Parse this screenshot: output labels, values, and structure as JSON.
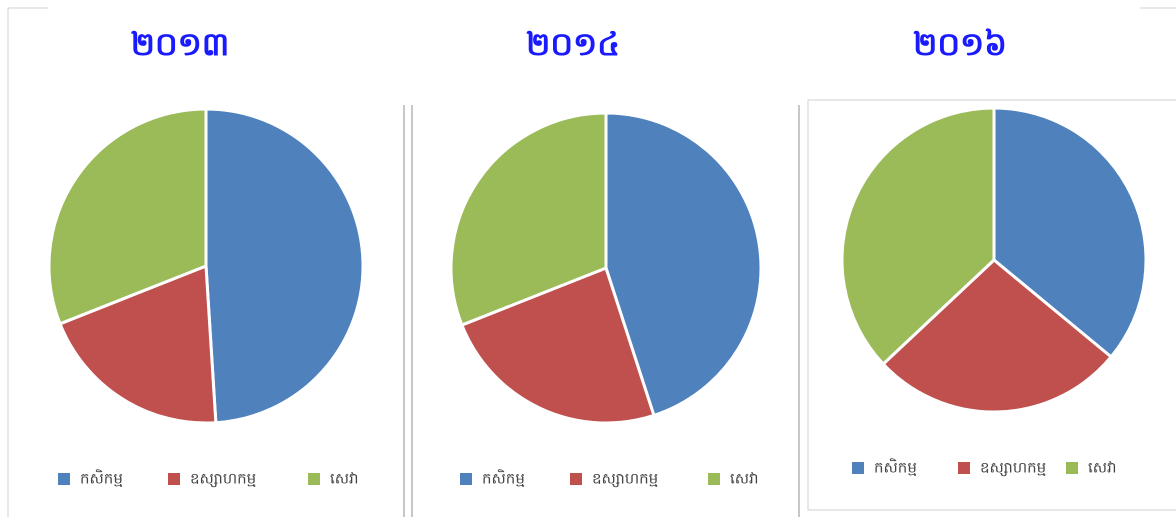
{
  "chart_data": [
    {
      "type": "pie",
      "title": "២០១៣",
      "categories": [
        "កសិកម្ម",
        "ឧស្សាហកម្ម",
        "សេវា"
      ],
      "values": [
        49,
        20,
        31
      ],
      "colors": [
        "#4f81bd",
        "#c0504d",
        "#9bbb59"
      ]
    },
    {
      "type": "pie",
      "title": "២០១៤",
      "categories": [
        "កសិកម្ម",
        "ឧស្សាហកម្ម",
        "សេវា"
      ],
      "values": [
        45,
        24,
        31
      ],
      "colors": [
        "#4f81bd",
        "#c0504d",
        "#9bbb59"
      ]
    },
    {
      "type": "pie",
      "title": "២០១៦",
      "categories": [
        "កសិកម្ម",
        "ឧស្សាហកម្ម",
        "សេវា"
      ],
      "values": [
        36,
        27,
        37
      ],
      "colors": [
        "#4f81bd",
        "#c0504d",
        "#9bbb59"
      ]
    }
  ]
}
